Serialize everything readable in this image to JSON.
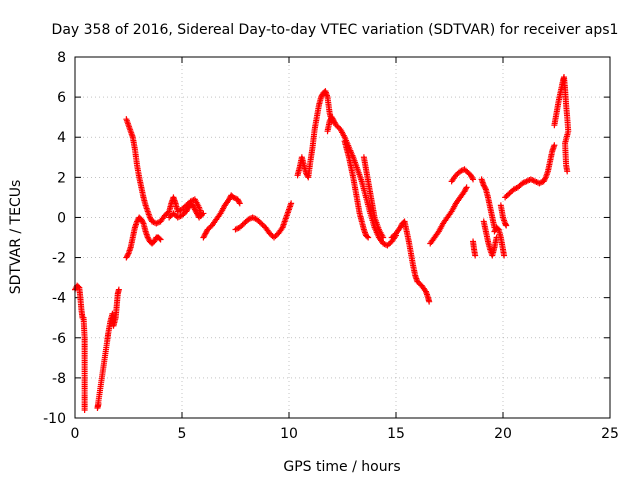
{
  "chart_data": {
    "type": "scatter",
    "title": "Day 358 of 2016, Sidereal Day-to-day VTEC variation (SDTVAR) for receiver aps1",
    "xlabel": "GPS time / hours",
    "ylabel": "SDTVAR / TECUs",
    "xlim": [
      0,
      25
    ],
    "ylim": [
      -10,
      8
    ],
    "xticks": [
      "0",
      "5",
      "10",
      "15",
      "20",
      "25"
    ],
    "yticks": [
      "-10",
      "-8",
      "-6",
      "-4",
      "-2",
      "0",
      "2",
      "4",
      "6",
      "8"
    ],
    "grid": true,
    "marker": "+",
    "color": "#ff0000",
    "series": [
      {
        "name": "seg1",
        "points": [
          [
            0.0,
            -3.6
          ],
          [
            0.1,
            -3.4
          ],
          [
            0.2,
            -3.5
          ],
          [
            0.25,
            -4.0
          ],
          [
            0.3,
            -4.6
          ],
          [
            0.35,
            -5.0
          ],
          [
            0.4,
            -5.0
          ],
          [
            0.45,
            -6.0
          ],
          [
            0.45,
            -6.6
          ],
          [
            0.45,
            -7.5
          ],
          [
            0.45,
            -8.8
          ],
          [
            0.45,
            -9.6
          ]
        ]
      },
      {
        "name": "seg2",
        "points": [
          [
            1.1,
            -9.3
          ],
          [
            1.05,
            -9.5
          ],
          [
            1.5,
            -6.2
          ],
          [
            1.55,
            -5.8
          ],
          [
            1.65,
            -5.2
          ],
          [
            1.75,
            -4.8
          ],
          [
            1.8,
            -5.4
          ],
          [
            1.9,
            -5.0
          ],
          [
            1.95,
            -4.4
          ],
          [
            2.0,
            -3.8
          ],
          [
            2.05,
            -3.6
          ]
        ]
      },
      {
        "name": "seg3",
        "points": [
          [
            2.4,
            4.9
          ],
          [
            2.5,
            4.6
          ],
          [
            2.6,
            4.3
          ],
          [
            2.7,
            4.0
          ],
          [
            2.8,
            3.4
          ],
          [
            2.9,
            2.6
          ],
          [
            3.0,
            2.0
          ],
          [
            3.1,
            1.5
          ],
          [
            3.2,
            1.0
          ],
          [
            3.3,
            0.6
          ],
          [
            3.4,
            0.3
          ],
          [
            3.5,
            0.0
          ],
          [
            3.6,
            -0.2
          ],
          [
            3.8,
            -0.3
          ],
          [
            4.0,
            -0.2
          ],
          [
            4.2,
            0.1
          ],
          [
            4.4,
            0.3
          ],
          [
            4.5,
            0.7
          ],
          [
            4.6,
            1.0
          ],
          [
            4.7,
            0.7
          ],
          [
            4.8,
            0.3
          ],
          [
            5.0,
            0.4
          ],
          [
            5.2,
            0.6
          ],
          [
            5.4,
            0.8
          ],
          [
            5.6,
            0.9
          ],
          [
            5.8,
            0.5
          ],
          [
            5.9,
            0.1
          ]
        ]
      },
      {
        "name": "seg4",
        "points": [
          [
            2.4,
            -2.0
          ],
          [
            2.5,
            -1.8
          ],
          [
            2.6,
            -1.5
          ],
          [
            2.7,
            -1.0
          ],
          [
            2.8,
            -0.5
          ],
          [
            2.9,
            -0.2
          ],
          [
            3.0,
            0.0
          ],
          [
            3.1,
            -0.1
          ],
          [
            3.2,
            -0.3
          ],
          [
            3.3,
            -0.7
          ],
          [
            3.4,
            -1.0
          ],
          [
            3.5,
            -1.2
          ],
          [
            3.6,
            -1.3
          ],
          [
            3.7,
            -1.2
          ],
          [
            3.8,
            -1.0
          ],
          [
            3.9,
            -1.0
          ],
          [
            4.0,
            -1.1
          ]
        ]
      },
      {
        "name": "seg5",
        "points": [
          [
            4.4,
            0.0
          ],
          [
            4.6,
            0.2
          ],
          [
            4.8,
            0.0
          ],
          [
            5.0,
            0.1
          ],
          [
            5.2,
            0.3
          ],
          [
            5.3,
            0.5
          ],
          [
            5.4,
            0.7
          ],
          [
            5.5,
            0.6
          ],
          [
            5.6,
            0.4
          ],
          [
            5.7,
            0.2
          ],
          [
            5.8,
            0.0
          ],
          [
            6.0,
            0.2
          ]
        ]
      },
      {
        "name": "seg6",
        "points": [
          [
            6.0,
            -1.0
          ],
          [
            6.1,
            -0.8
          ],
          [
            6.2,
            -0.6
          ],
          [
            6.4,
            -0.4
          ],
          [
            6.6,
            -0.1
          ],
          [
            6.8,
            0.2
          ],
          [
            7.0,
            0.6
          ],
          [
            7.2,
            0.9
          ],
          [
            7.3,
            1.1
          ],
          [
            7.4,
            1.0
          ],
          [
            7.6,
            0.9
          ],
          [
            7.7,
            0.7
          ]
        ]
      },
      {
        "name": "seg7",
        "points": [
          [
            7.5,
            -0.6
          ],
          [
            7.7,
            -0.5
          ],
          [
            7.9,
            -0.3
          ],
          [
            8.1,
            -0.1
          ],
          [
            8.3,
            0.0
          ],
          [
            8.5,
            -0.1
          ],
          [
            8.7,
            -0.3
          ],
          [
            8.9,
            -0.5
          ],
          [
            9.1,
            -0.8
          ],
          [
            9.3,
            -1.0
          ],
          [
            9.5,
            -0.8
          ],
          [
            9.7,
            -0.5
          ],
          [
            9.8,
            -0.2
          ],
          [
            9.9,
            0.1
          ],
          [
            10.0,
            0.4
          ],
          [
            10.1,
            0.7
          ]
        ]
      },
      {
        "name": "seg8",
        "points": [
          [
            10.4,
            2.1
          ],
          [
            10.5,
            2.5
          ],
          [
            10.6,
            3.0
          ],
          [
            10.7,
            2.6
          ],
          [
            10.8,
            2.2
          ],
          [
            10.9,
            2.0
          ],
          [
            11.0,
            2.8
          ],
          [
            11.1,
            3.5
          ],
          [
            11.2,
            4.4
          ],
          [
            11.3,
            5.0
          ],
          [
            11.4,
            5.6
          ],
          [
            11.5,
            6.0
          ],
          [
            11.6,
            6.2
          ],
          [
            11.7,
            6.3
          ],
          [
            11.8,
            6.0
          ],
          [
            11.9,
            5.2
          ],
          [
            12.0,
            4.8
          ]
        ]
      },
      {
        "name": "seg9",
        "points": [
          [
            11.8,
            4.3
          ],
          [
            11.9,
            4.8
          ],
          [
            12.0,
            5.0
          ],
          [
            12.1,
            4.8
          ],
          [
            12.2,
            4.6
          ],
          [
            12.4,
            4.4
          ],
          [
            12.6,
            4.0
          ],
          [
            12.8,
            3.5
          ],
          [
            13.0,
            3.0
          ],
          [
            13.2,
            2.4
          ],
          [
            13.4,
            1.8
          ],
          [
            13.6,
            1.0
          ],
          [
            13.8,
            0.2
          ],
          [
            14.0,
            -0.5
          ],
          [
            14.2,
            -1.0
          ],
          [
            14.4,
            -1.3
          ],
          [
            14.6,
            -1.4
          ],
          [
            14.8,
            -1.2
          ],
          [
            15.0,
            -0.9
          ]
        ]
      },
      {
        "name": "seg10",
        "points": [
          [
            12.6,
            3.8
          ],
          [
            12.7,
            3.4
          ],
          [
            12.8,
            3.0
          ],
          [
            12.9,
            2.5
          ],
          [
            13.0,
            2.0
          ],
          [
            13.1,
            1.4
          ],
          [
            13.2,
            0.8
          ],
          [
            13.3,
            0.2
          ],
          [
            13.4,
            -0.2
          ],
          [
            13.5,
            -0.6
          ],
          [
            13.6,
            -0.9
          ],
          [
            13.7,
            -1.0
          ]
        ]
      },
      {
        "name": "seg11",
        "points": [
          [
            13.5,
            3.0
          ],
          [
            13.6,
            2.4
          ],
          [
            13.7,
            1.8
          ],
          [
            13.8,
            1.2
          ],
          [
            13.9,
            0.6
          ],
          [
            14.0,
            0.0
          ],
          [
            14.2,
            -0.6
          ],
          [
            14.4,
            -1.0
          ]
        ]
      },
      {
        "name": "seg12",
        "points": [
          [
            14.8,
            -1.0
          ],
          [
            15.0,
            -0.8
          ],
          [
            15.2,
            -0.5
          ],
          [
            15.3,
            -0.3
          ],
          [
            15.4,
            -0.2
          ],
          [
            15.5,
            -0.7
          ],
          [
            15.6,
            -1.2
          ],
          [
            15.7,
            -1.8
          ],
          [
            15.8,
            -2.4
          ],
          [
            15.9,
            -2.9
          ],
          [
            16.0,
            -3.2
          ],
          [
            16.2,
            -3.4
          ],
          [
            16.4,
            -3.7
          ],
          [
            16.5,
            -4.0
          ],
          [
            16.55,
            -4.2
          ]
        ]
      },
      {
        "name": "seg13",
        "points": [
          [
            16.6,
            -1.3
          ],
          [
            16.8,
            -1.0
          ],
          [
            17.0,
            -0.7
          ],
          [
            17.2,
            -0.3
          ],
          [
            17.4,
            0.0
          ],
          [
            17.6,
            0.3
          ],
          [
            17.8,
            0.7
          ],
          [
            18.0,
            1.0
          ],
          [
            18.2,
            1.3
          ],
          [
            18.3,
            1.5
          ]
        ]
      },
      {
        "name": "seg14",
        "points": [
          [
            17.6,
            1.8
          ],
          [
            17.8,
            2.1
          ],
          [
            18.0,
            2.3
          ],
          [
            18.2,
            2.4
          ],
          [
            18.4,
            2.2
          ],
          [
            18.5,
            2.1
          ],
          [
            18.6,
            1.9
          ]
        ]
      },
      {
        "name": "seg15",
        "points": [
          [
            18.6,
            -1.2
          ],
          [
            18.65,
            -1.6
          ],
          [
            18.7,
            -1.9
          ]
        ]
      },
      {
        "name": "seg16",
        "points": [
          [
            19.0,
            1.9
          ],
          [
            19.1,
            1.6
          ],
          [
            19.2,
            1.4
          ],
          [
            19.3,
            1.0
          ],
          [
            19.4,
            0.5
          ],
          [
            19.5,
            0.0
          ],
          [
            19.6,
            -0.5
          ]
        ]
      },
      {
        "name": "seg17",
        "points": [
          [
            19.1,
            -0.2
          ],
          [
            19.2,
            -0.7
          ],
          [
            19.3,
            -1.2
          ],
          [
            19.4,
            -1.6
          ],
          [
            19.5,
            -1.9
          ],
          [
            19.6,
            -1.5
          ],
          [
            19.7,
            -1.0
          ]
        ]
      },
      {
        "name": "seg18",
        "points": [
          [
            19.6,
            -0.7
          ],
          [
            19.7,
            -0.5
          ],
          [
            19.8,
            -0.6
          ],
          [
            19.9,
            -1.0
          ],
          [
            20.0,
            -1.6
          ],
          [
            20.05,
            -1.9
          ]
        ]
      },
      {
        "name": "seg19",
        "points": [
          [
            19.9,
            0.6
          ],
          [
            20.0,
            0.0
          ],
          [
            20.1,
            -0.3
          ],
          [
            20.15,
            -0.4
          ]
        ]
      },
      {
        "name": "seg20",
        "points": [
          [
            20.1,
            1.0
          ],
          [
            20.3,
            1.2
          ],
          [
            20.5,
            1.4
          ],
          [
            20.7,
            1.5
          ],
          [
            20.9,
            1.7
          ],
          [
            21.1,
            1.8
          ],
          [
            21.3,
            1.9
          ],
          [
            21.5,
            1.8
          ],
          [
            21.7,
            1.7
          ],
          [
            21.9,
            1.8
          ],
          [
            22.0,
            2.0
          ],
          [
            22.1,
            2.3
          ],
          [
            22.2,
            2.8
          ],
          [
            22.3,
            3.3
          ],
          [
            22.4,
            3.6
          ]
        ]
      },
      {
        "name": "seg21",
        "points": [
          [
            22.4,
            4.6
          ],
          [
            22.5,
            5.2
          ],
          [
            22.6,
            5.8
          ],
          [
            22.7,
            6.3
          ],
          [
            22.8,
            6.8
          ],
          [
            22.85,
            7.0
          ],
          [
            22.9,
            6.4
          ],
          [
            22.95,
            5.6
          ],
          [
            23.0,
            5.0
          ],
          [
            23.05,
            4.3
          ],
          [
            22.9,
            3.7
          ],
          [
            22.95,
            2.6
          ],
          [
            23.0,
            2.3
          ]
        ]
      }
    ]
  }
}
